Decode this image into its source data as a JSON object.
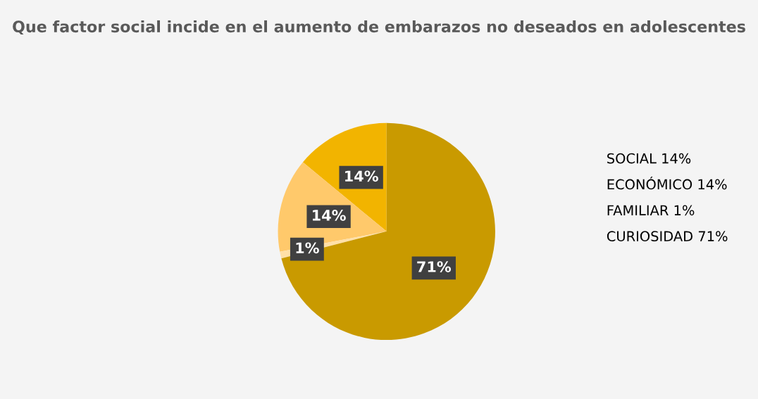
{
  "chart_data": {
    "type": "pie",
    "title": "Que factor social incide en el aumento de embarazos no deseados en adolescentes",
    "categories": [
      null,
      null,
      null,
      null
    ],
    "values": [
      14,
      14,
      1,
      71
    ],
    "value_labels": [
      "14%",
      "14%",
      "1%",
      "71%"
    ],
    "colors": [
      "#f2b400",
      "#ffc96b",
      "#ffe0a8",
      "#c99a00"
    ],
    "annotations": [
      "SOCIAL 14%",
      "ECONÓMICO 14%",
      "FAMILIAR 1%",
      "CURIOSIDAD 71%"
    ]
  }
}
